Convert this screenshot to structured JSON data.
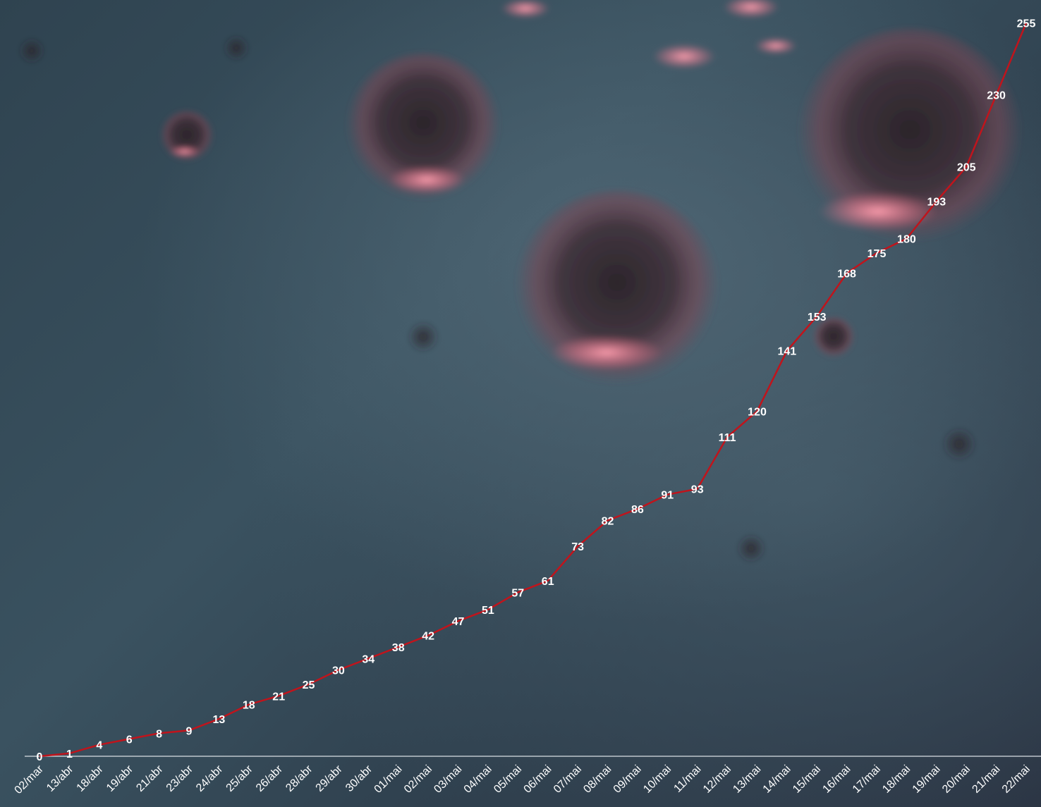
{
  "colors": {
    "line": "#c0141c",
    "label": "#ffffff",
    "axis": "#d7dde2",
    "virus_body": "#3a2c33",
    "virus_glow": "#ff8fa3"
  },
  "chart_data": {
    "type": "line",
    "title": "",
    "xlabel": "",
    "ylabel": "",
    "categories": [
      "02/mar",
      "13/abr",
      "18/abr",
      "19/abr",
      "21/abr",
      "23/abr",
      "24/abr",
      "25/abr",
      "26/abr",
      "28/abr",
      "29/abr",
      "30/abr",
      "01/mai",
      "02/mai",
      "03/mai",
      "04/mai",
      "05/mai",
      "06/mai",
      "07/mai",
      "08/mai",
      "09/mai",
      "10/mai",
      "11/mai",
      "12/mai",
      "13/mai",
      "14/mai",
      "15/mai",
      "16/mai",
      "17/mai",
      "18/mai",
      "19/mai",
      "20/mai",
      "21/mai",
      "22/mai"
    ],
    "series": [
      {
        "values": [
          0,
          1,
          4,
          6,
          8,
          9,
          13,
          18,
          21,
          25,
          30,
          34,
          38,
          42,
          47,
          51,
          57,
          61,
          73,
          82,
          86,
          91,
          93,
          111,
          120,
          141,
          153,
          168,
          175,
          180,
          193,
          205,
          230,
          255
        ]
      }
    ],
    "ylim": [
      0,
      260
    ],
    "grid": false,
    "legend": "none",
    "data_labels": true
  }
}
